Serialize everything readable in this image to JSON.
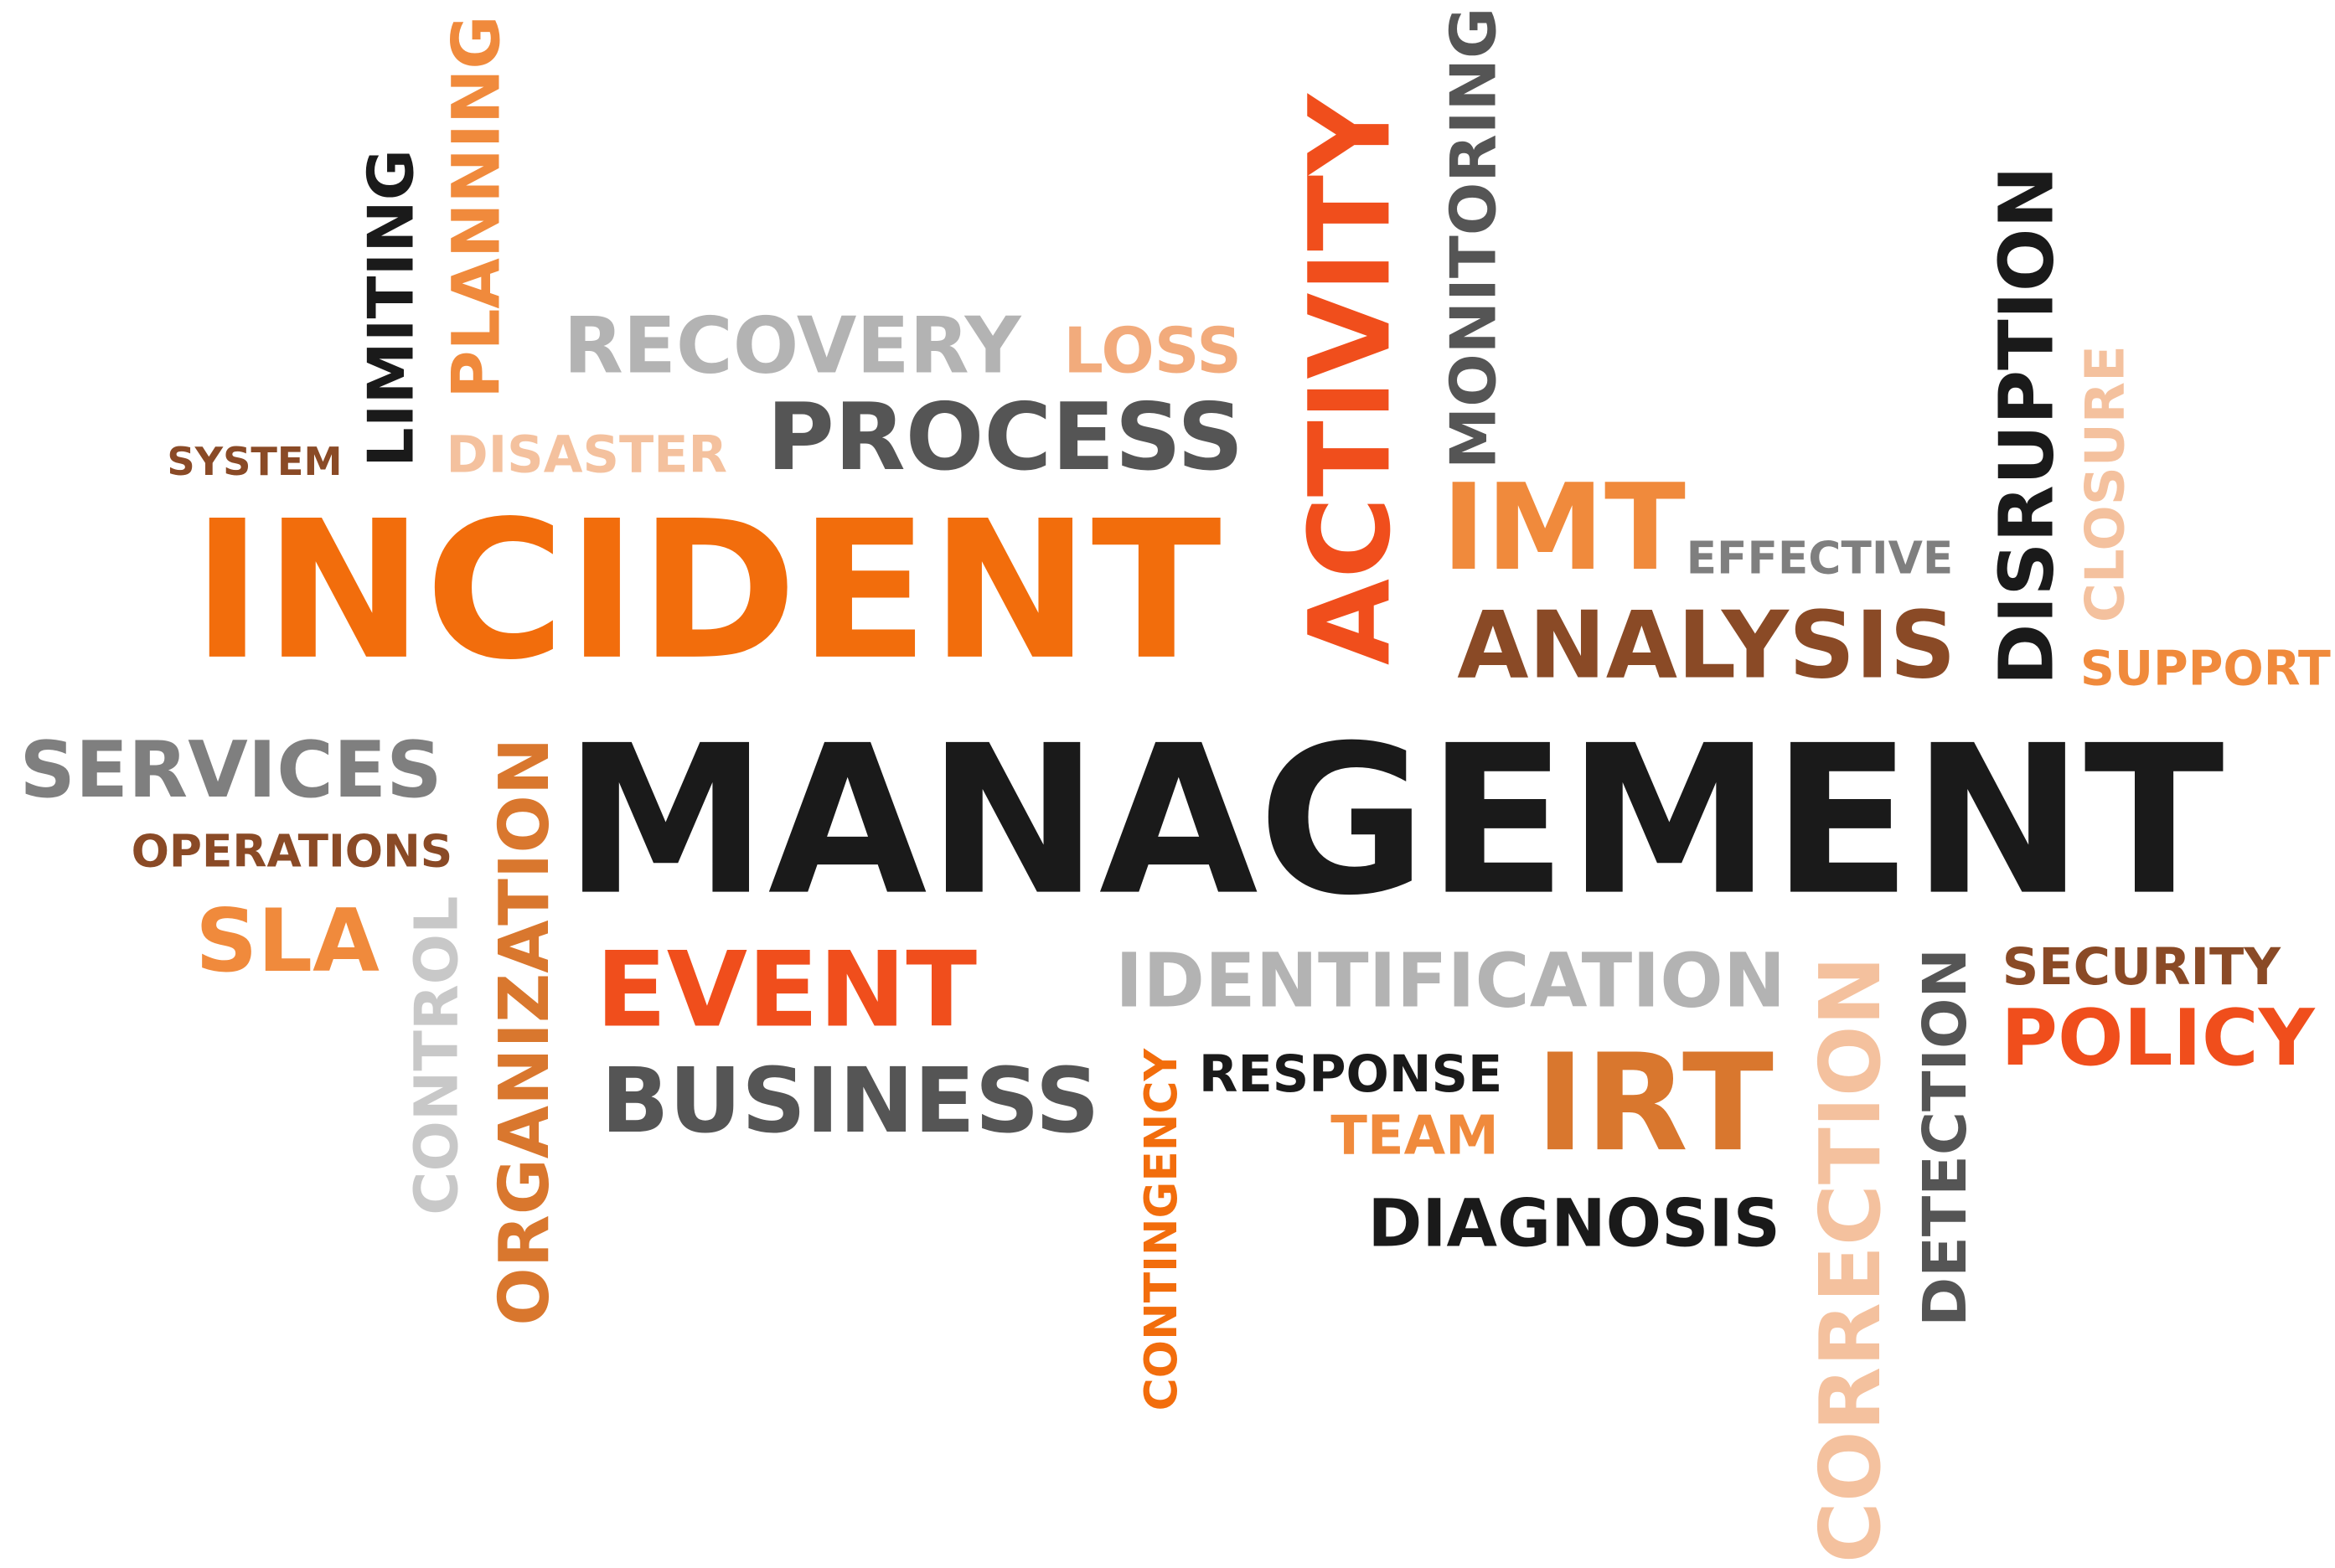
{
  "colors": {
    "black": "#1a1a1a",
    "dark_gray": "#555555",
    "mid_gray": "#7f7f7f",
    "light_gray": "#b3b3b3",
    "silver": "#c8c8c8",
    "orange": "#f26d0c",
    "red_orange": "#f04e1c",
    "amber": "#f08a3c",
    "peach": "#f2ab7c",
    "light_peach": "#f4c19e",
    "brown": "#8a4a26",
    "copper": "#d9772e"
  },
  "words": {
    "incident": "INCIDENT",
    "management": "MANAGEMENT",
    "activity": "ACTIVITY",
    "monitoring": "MONITORING",
    "disruption": "DISRUPTION",
    "closure": "CLOSURE",
    "support": "SUPPORT",
    "imt": "IMT",
    "effective": "EFFECTIVE",
    "analysis": "ANALYSIS",
    "limiting": "LIMITING",
    "planning": "PLANNING",
    "recovery": "RECOVERY",
    "loss": "LOSS",
    "system": "SYSTEM",
    "disaster": "DISASTER",
    "process": "PROCESS",
    "services": "SERVICES",
    "operations": "OPERATIONS",
    "sla": "SLA",
    "control": "CONTROL",
    "organization": "ORGANIZATION",
    "event": "EVENT",
    "business": "BUSINESS",
    "identification": "IDENTIFICATION",
    "contingency": "CONTINGENCY",
    "response": "RESPONSE",
    "team": "TEAM",
    "irt": "IRT",
    "diagnosis": "DIAGNOSIS",
    "correction": "CORRECTION",
    "detection": "DETECTION",
    "security": "SECURITY",
    "policy": "POLICY"
  }
}
